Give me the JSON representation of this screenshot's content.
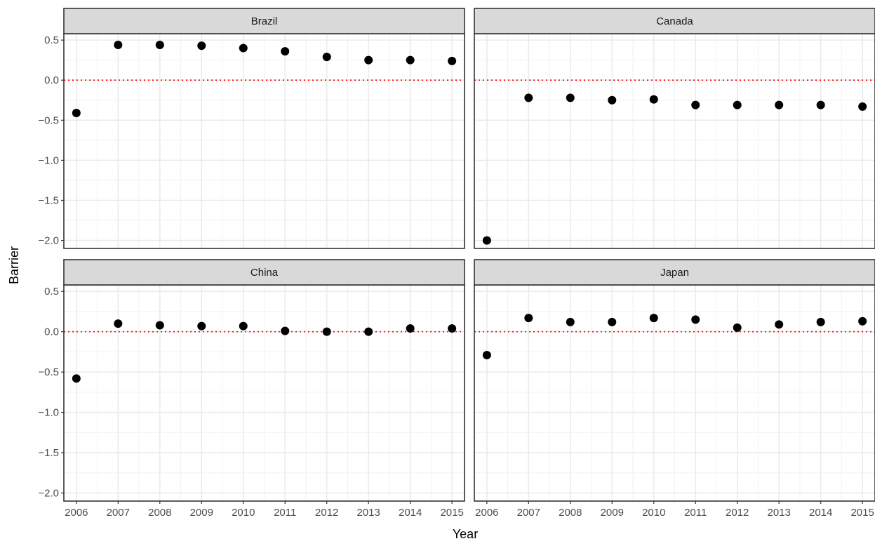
{
  "chart_data": {
    "type": "scatter",
    "facet_layout": "2x2",
    "xlabel": "Year",
    "ylabel": "Barrier",
    "x_ticks": [
      2006,
      2007,
      2008,
      2009,
      2010,
      2011,
      2012,
      2013,
      2014,
      2015
    ],
    "y_ticks": [
      0.5,
      0.0,
      -0.5,
      -1.0,
      -1.5,
      -2.0
    ],
    "y_tick_labels": [
      "0.5",
      "0.0",
      "−0.5",
      "−1.0",
      "−1.5",
      "−2.0"
    ],
    "xlim": [
      2005.7,
      2015.3
    ],
    "ylim": [
      -2.1,
      0.58
    ],
    "reference_line": {
      "y": 0,
      "style": "dotted",
      "color": "#ff0000"
    },
    "point_color": "#000000",
    "grid": true,
    "legend": "none",
    "facets": [
      {
        "name": "Brazil",
        "x": [
          2006,
          2007,
          2008,
          2009,
          2010,
          2011,
          2012,
          2013,
          2014,
          2015
        ],
        "y": [
          -0.41,
          0.44,
          0.44,
          0.43,
          0.4,
          0.36,
          0.29,
          0.25,
          0.25,
          0.24
        ]
      },
      {
        "name": "Canada",
        "x": [
          2006,
          2007,
          2008,
          2009,
          2010,
          2011,
          2012,
          2013,
          2014,
          2015
        ],
        "y": [
          -2.0,
          -0.22,
          -0.22,
          -0.25,
          -0.24,
          -0.31,
          -0.31,
          -0.31,
          -0.31,
          -0.33
        ]
      },
      {
        "name": "China",
        "x": [
          2006,
          2007,
          2008,
          2009,
          2010,
          2011,
          2012,
          2013,
          2014,
          2015
        ],
        "y": [
          -0.58,
          0.1,
          0.08,
          0.07,
          0.07,
          0.01,
          0.0,
          0.0,
          0.04,
          0.04
        ]
      },
      {
        "name": "Japan",
        "x": [
          2006,
          2007,
          2008,
          2009,
          2010,
          2011,
          2012,
          2013,
          2014,
          2015
        ],
        "y": [
          -0.29,
          0.17,
          0.12,
          0.12,
          0.17,
          0.15,
          0.05,
          0.09,
          0.12,
          0.13
        ]
      }
    ]
  }
}
